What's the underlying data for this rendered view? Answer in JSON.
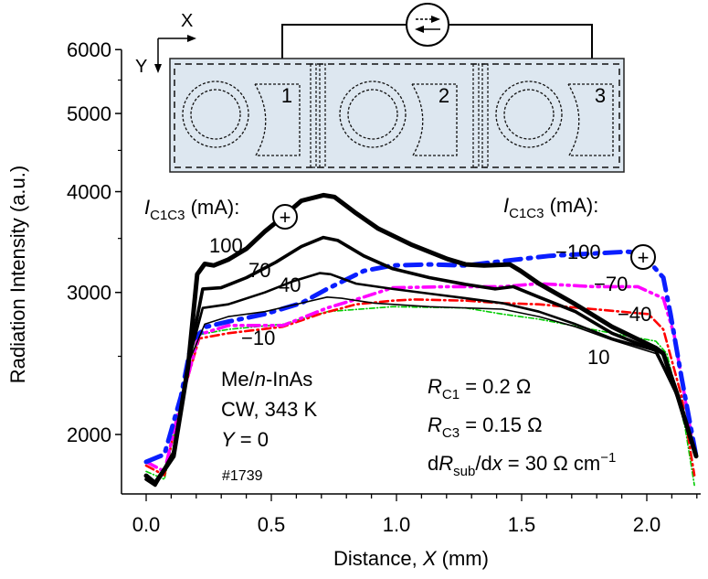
{
  "chart_data": {
    "type": "line",
    "xlabel_prefix": "Distance, ",
    "xlabel_var": "X",
    "xlabel_suffix": " (mm)",
    "ylabel": "Radiation Intensity (a.u.)",
    "xlim": [
      -0.1,
      2.22
    ],
    "ylim": [
      1700,
      6000
    ],
    "yscale": "log",
    "x_ticks": [
      0.0,
      0.5,
      1.0,
      1.5,
      2.0
    ],
    "x_tick_labels": [
      "0.0",
      "0.5",
      "1.0",
      "1.5",
      "2.0"
    ],
    "x_minor_step": 0.1,
    "y_ticks": [
      2000,
      3000,
      4000,
      5000,
      6000
    ],
    "y_tick_labels": [
      "2000",
      "3000",
      "4000",
      "5000",
      "6000"
    ],
    "y_minor_ticks": [
      2500,
      3500,
      4500,
      5500
    ],
    "grid": false,
    "series": [
      {
        "name": "100",
        "color": "#000000",
        "style": "solid",
        "weight": "heaviest",
        "points": [
          [
            0,
            1778
          ],
          [
            0.036,
            1740
          ],
          [
            0.109,
            1880
          ],
          [
            0.168,
            2433
          ],
          [
            0.204,
            3160
          ],
          [
            0.234,
            3255
          ],
          [
            0.27,
            3240
          ],
          [
            0.328,
            3295
          ],
          [
            0.401,
            3400
          ],
          [
            0.474,
            3570
          ],
          [
            0.547,
            3725
          ],
          [
            0.62,
            3897
          ],
          [
            0.708,
            3960
          ],
          [
            0.752,
            3940
          ],
          [
            0.839,
            3760
          ],
          [
            0.927,
            3600
          ],
          [
            1.058,
            3440
          ],
          [
            1.204,
            3300
          ],
          [
            1.277,
            3250
          ],
          [
            1.35,
            3240
          ],
          [
            1.453,
            3250
          ],
          [
            1.496,
            3190
          ],
          [
            1.569,
            3076
          ],
          [
            1.715,
            2900
          ],
          [
            1.861,
            2720
          ],
          [
            2.036,
            2560
          ],
          [
            2.066,
            2520
          ],
          [
            2.124,
            2230
          ],
          [
            2.197,
            1880
          ]
        ]
      },
      {
        "name": "70",
        "color": "#000000",
        "style": "solid",
        "weight": "heavy",
        "points": [
          [
            0,
            1760
          ],
          [
            0.036,
            1730
          ],
          [
            0.109,
            1900
          ],
          [
            0.168,
            2450
          ],
          [
            0.226,
            3030
          ],
          [
            0.299,
            3040
          ],
          [
            0.401,
            3130
          ],
          [
            0.518,
            3270
          ],
          [
            0.62,
            3420
          ],
          [
            0.708,
            3510
          ],
          [
            0.766,
            3480
          ],
          [
            0.869,
            3330
          ],
          [
            0.985,
            3210
          ],
          [
            1.131,
            3130
          ],
          [
            1.277,
            3070
          ],
          [
            1.394,
            3030
          ],
          [
            1.467,
            3050
          ],
          [
            1.569,
            2960
          ],
          [
            1.715,
            2840
          ],
          [
            1.861,
            2670
          ],
          [
            2.036,
            2540
          ],
          [
            2.124,
            2230
          ],
          [
            2.197,
            1880
          ]
        ]
      },
      {
        "name": "40",
        "color": "#000000",
        "style": "solid",
        "weight": "medium",
        "points": [
          [
            0,
            1760
          ],
          [
            0.036,
            1730
          ],
          [
            0.109,
            1900
          ],
          [
            0.168,
            2450
          ],
          [
            0.226,
            2870
          ],
          [
            0.328,
            2900
          ],
          [
            0.474,
            3000
          ],
          [
            0.591,
            3100
          ],
          [
            0.693,
            3170
          ],
          [
            0.737,
            3160
          ],
          [
            0.839,
            3076
          ],
          [
            0.985,
            3030
          ],
          [
            1.131,
            2990
          ],
          [
            1.277,
            2950
          ],
          [
            1.423,
            2910
          ],
          [
            1.569,
            2840
          ],
          [
            1.715,
            2740
          ],
          [
            1.861,
            2630
          ],
          [
            2.036,
            2540
          ],
          [
            2.124,
            2230
          ],
          [
            2.197,
            1880
          ]
        ]
      },
      {
        "name": "10",
        "color": "#000000",
        "style": "solid",
        "weight": "light",
        "points": [
          [
            0,
            1760
          ],
          [
            0.036,
            1730
          ],
          [
            0.109,
            1900
          ],
          [
            0.168,
            2450
          ],
          [
            0.234,
            2740
          ],
          [
            0.328,
            2800
          ],
          [
            0.474,
            2840
          ],
          [
            0.62,
            2910
          ],
          [
            0.723,
            2960
          ],
          [
            0.781,
            2950
          ],
          [
            0.912,
            2910
          ],
          [
            1.131,
            2880
          ],
          [
            1.423,
            2860
          ],
          [
            1.569,
            2800
          ],
          [
            1.715,
            2720
          ],
          [
            1.861,
            2620
          ],
          [
            2.036,
            2520
          ],
          [
            2.124,
            2230
          ],
          [
            2.197,
            1880
          ]
        ]
      },
      {
        "name": "−100",
        "color": "#0a1eff",
        "style": "dash-dot",
        "weight": "heaviest",
        "points": [
          [
            0,
            1850
          ],
          [
            0.073,
            1890
          ],
          [
            0.139,
            2230
          ],
          [
            0.182,
            2610
          ],
          [
            0.241,
            2720
          ],
          [
            0.328,
            2760
          ],
          [
            0.474,
            2820
          ],
          [
            0.62,
            2910
          ],
          [
            0.723,
            3030
          ],
          [
            0.869,
            3190
          ],
          [
            0.985,
            3240
          ],
          [
            1.131,
            3250
          ],
          [
            1.277,
            3240
          ],
          [
            1.423,
            3280
          ],
          [
            1.613,
            3330
          ],
          [
            1.92,
            3370
          ],
          [
            1.978,
            3360
          ],
          [
            2.066,
            3130
          ],
          [
            2.095,
            2820
          ],
          [
            2.139,
            2350
          ],
          [
            2.197,
            1880
          ]
        ]
      },
      {
        "name": "−70",
        "color": "#ff00ff",
        "style": "dash-dot-dot",
        "weight": "heavy",
        "points": [
          [
            0,
            1850
          ],
          [
            0.073,
            1800
          ],
          [
            0.139,
            2200
          ],
          [
            0.212,
            2660
          ],
          [
            0.328,
            2730
          ],
          [
            0.547,
            2730
          ],
          [
            0.723,
            2870
          ],
          [
            0.869,
            2960
          ],
          [
            0.985,
            3040
          ],
          [
            1.204,
            3050
          ],
          [
            1.423,
            3050
          ],
          [
            1.569,
            3076
          ],
          [
            1.788,
            3050
          ],
          [
            1.964,
            3050
          ],
          [
            2.066,
            2950
          ],
          [
            2.109,
            2660
          ],
          [
            2.182,
            1960
          ]
        ]
      },
      {
        "name": "−40",
        "color": "#ff0000",
        "style": "dash-dot",
        "weight": "medium",
        "points": [
          [
            0,
            1830
          ],
          [
            0.073,
            1780
          ],
          [
            0.139,
            2200
          ],
          [
            0.212,
            2630
          ],
          [
            0.328,
            2670
          ],
          [
            0.547,
            2720
          ],
          [
            0.693,
            2820
          ],
          [
            0.839,
            2900
          ],
          [
            0.985,
            2930
          ],
          [
            1.073,
            2940
          ],
          [
            1.277,
            2930
          ],
          [
            1.423,
            2910
          ],
          [
            1.569,
            2900
          ],
          [
            1.788,
            2860
          ],
          [
            2.007,
            2820
          ],
          [
            2.066,
            2700
          ],
          [
            2.139,
            2230
          ],
          [
            2.19,
            1780
          ]
        ]
      },
      {
        "name": "−10",
        "color": "#00cc00",
        "style": "dash-dot",
        "weight": "light",
        "points": [
          [
            0,
            1800
          ],
          [
            0.073,
            1760
          ],
          [
            0.139,
            2200
          ],
          [
            0.212,
            2660
          ],
          [
            0.328,
            2700
          ],
          [
            0.547,
            2740
          ],
          [
            0.723,
            2840
          ],
          [
            0.985,
            2880
          ],
          [
            1.277,
            2870
          ],
          [
            1.423,
            2820
          ],
          [
            1.569,
            2780
          ],
          [
            1.861,
            2670
          ],
          [
            2.036,
            2610
          ],
          [
            2.08,
            2520
          ],
          [
            2.153,
            2040
          ],
          [
            2.19,
            1730
          ]
        ]
      }
    ],
    "annotations": {
      "legend_left_title_I": "I",
      "legend_left_title_sub": "C1C3",
      "legend_left_title_rest": " (mA):",
      "legend_right_title_I": "I",
      "legend_right_title_sub": "C1C3",
      "legend_right_title_rest": " (mA):",
      "plus_symbol": "+",
      "label_100": "100",
      "label_70": "70",
      "label_40": "40",
      "label_m10": "−10",
      "label_m100": "−100",
      "label_m70": "−70",
      "label_m40": "−40",
      "label_10": "10",
      "sample_prefix": "Me/",
      "sample_n": "n",
      "sample_suffix": "-InAs",
      "mode": "CW, 343 K",
      "y_eq_var": "Y",
      "y_eq_rest": " = 0",
      "sample_id": "#1739",
      "rc1_R": "R",
      "rc1_sub": "C1",
      "rc1_rest": " = 0.2 Ω",
      "rc3_R": "R",
      "rc3_sub": "C3",
      "rc3_rest": " = 0.15 Ω",
      "drsub_d": "d",
      "drsub_R": "R",
      "drsub_sub": "sub",
      "drsub_mid": "/d",
      "drsub_x": "x",
      "drsub_rest": " = 30 Ω cm",
      "drsub_sup": "−1"
    },
    "inset": {
      "axis_x": "X",
      "axis_y": "Y",
      "cell_labels": [
        "1",
        "2",
        "3"
      ],
      "fill": "#dde7f0"
    }
  }
}
